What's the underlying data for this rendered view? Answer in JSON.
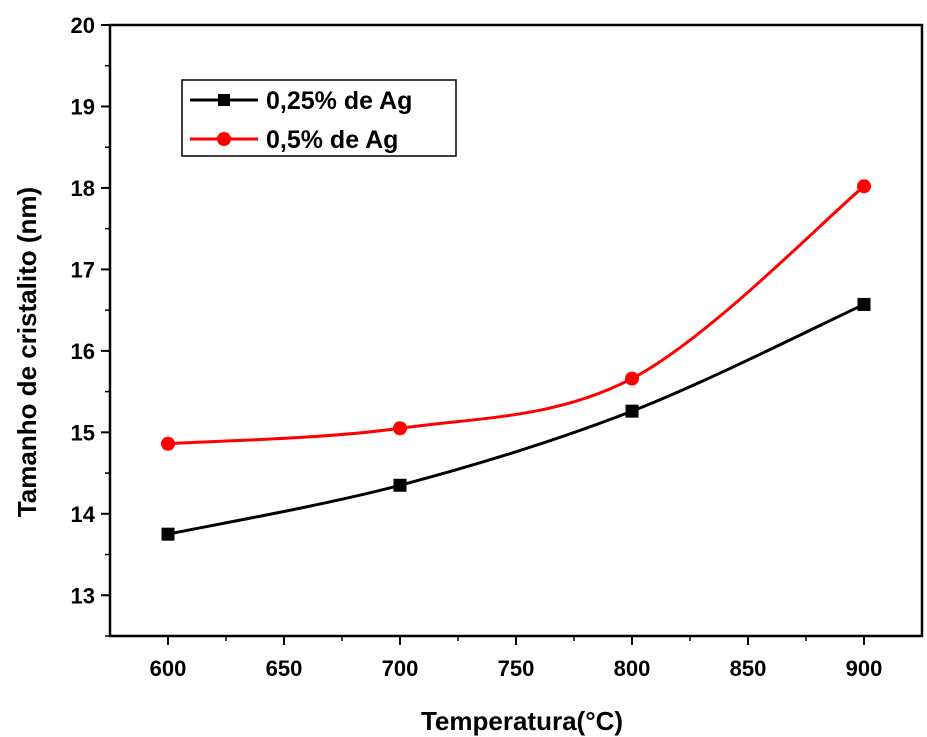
{
  "chart_data": {
    "type": "line",
    "xlabel": "Temperatura(°C)",
    "ylabel": "Tamanho de cristalito (nm)",
    "xlim": [
      575,
      925
    ],
    "ylim": [
      12.5,
      20
    ],
    "xticks": [
      600,
      650,
      700,
      750,
      800,
      850,
      900
    ],
    "yticks": [
      13,
      14,
      15,
      16,
      17,
      18,
      19,
      20
    ],
    "grid": false,
    "legend_position": "top-left",
    "series": [
      {
        "name": "0,25% de Ag",
        "color": "#000000",
        "marker": "square",
        "x": [
          600,
          700,
          800,
          900
        ],
        "y": [
          13.75,
          14.35,
          15.26,
          16.57
        ]
      },
      {
        "name": "0,5% de Ag",
        "color": "#ff0000",
        "marker": "circle",
        "x": [
          600,
          700,
          800,
          900
        ],
        "y": [
          14.86,
          15.05,
          15.66,
          18.02
        ]
      }
    ]
  }
}
